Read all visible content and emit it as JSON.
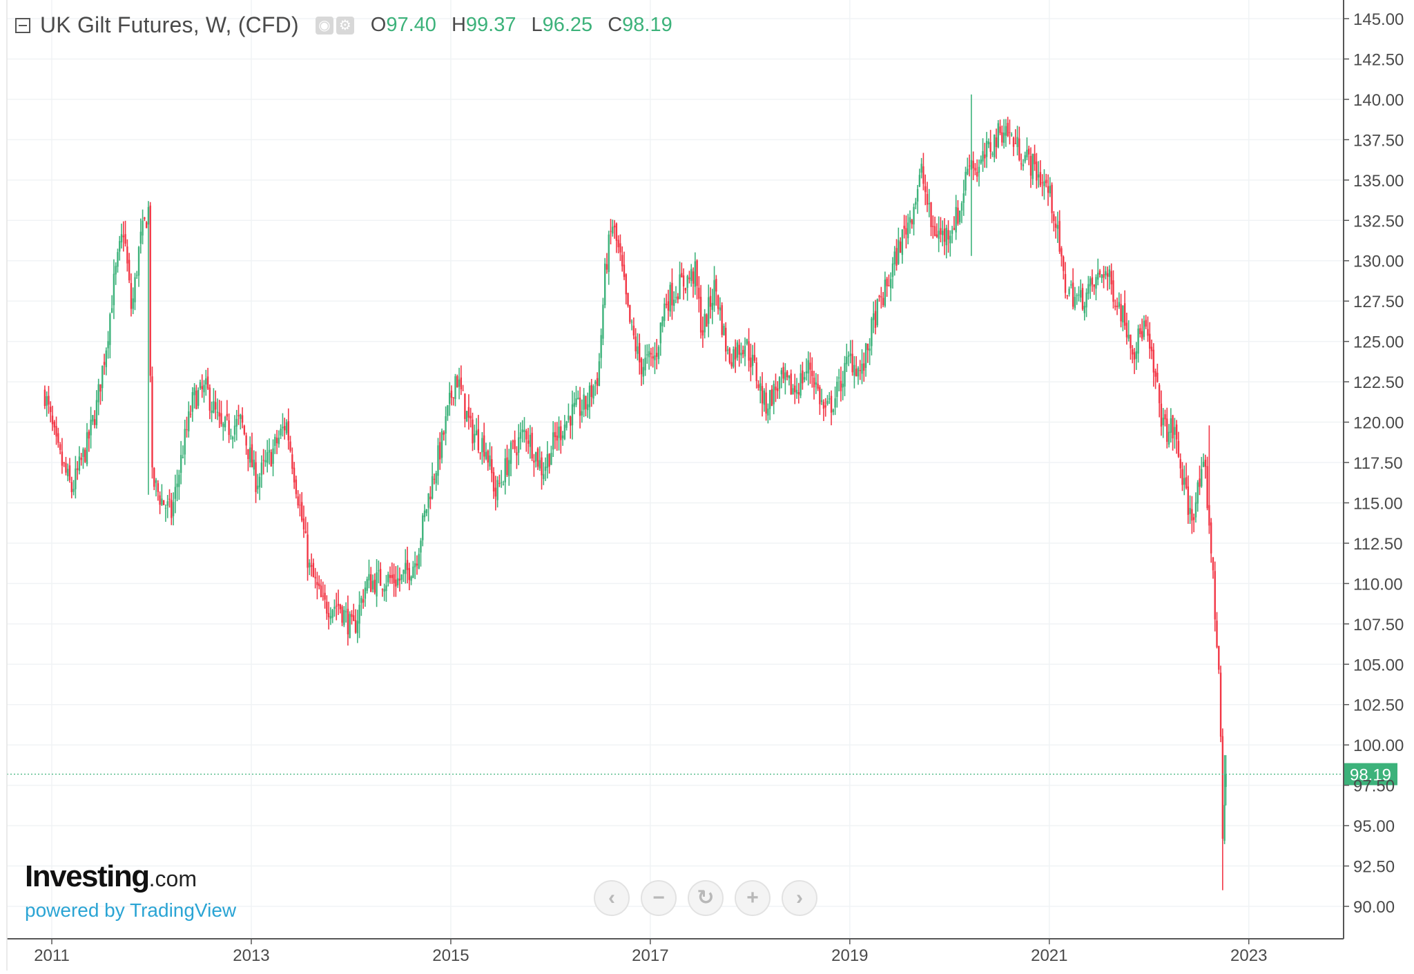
{
  "legend": {
    "title": "UK Gilt Futures, W, (CFD)",
    "icons": [
      "eye-icon",
      "gear-icon"
    ],
    "open_label": "O",
    "open_value": "97.40",
    "high_label": "H",
    "high_value": "99.37",
    "low_label": "L",
    "low_value": "96.25",
    "close_label": "C",
    "close_value": "98.19"
  },
  "brand": {
    "logo_main": "Investing",
    "logo_suffix": ".com",
    "powered_by": "powered by TradingView"
  },
  "navigation": [
    {
      "name": "scroll-left-button",
      "glyph": "‹"
    },
    {
      "name": "zoom-out-button",
      "glyph": "−"
    },
    {
      "name": "reset-button",
      "glyph": "↻"
    },
    {
      "name": "zoom-in-button",
      "glyph": "+"
    },
    {
      "name": "scroll-right-button",
      "glyph": "›"
    }
  ],
  "colors": {
    "up": "#3cb27a",
    "down": "#f23645",
    "price_label_bg": "#3cb27a",
    "price_line": "#3cb27a",
    "grid": "#f0f3f5",
    "axis_text": "#4a4a4a",
    "axis_line": "#555555"
  },
  "chart_data": {
    "type": "candlestick",
    "timeframe": "W",
    "instrument": "UK Gilt Futures (CFD)",
    "ylim": [
      88.0,
      147.0
    ],
    "y_ticks": [
      "90.00",
      "92.50",
      "95.00",
      "97.50",
      "100.00",
      "102.50",
      "105.00",
      "107.50",
      "110.00",
      "112.50",
      "115.00",
      "117.50",
      "120.00",
      "122.50",
      "125.00",
      "127.50",
      "130.00",
      "132.50",
      "135.00",
      "137.50",
      "140.00",
      "142.50",
      "145.00"
    ],
    "x_range": [
      2010.55,
      2023.95
    ],
    "x_ticks": [
      "2011",
      "2013",
      "2015",
      "2017",
      "2019",
      "2021",
      "2023"
    ],
    "x_tick_values": [
      2011,
      2013,
      2015,
      2017,
      2019,
      2021,
      2023
    ],
    "grid": true,
    "last_price_label": "98.19",
    "last_price": 98.19,
    "close_path": [
      [
        2010.93,
        121.8
      ],
      [
        2011.05,
        118.3
      ],
      [
        2011.2,
        115.8
      ],
      [
        2011.35,
        118.5
      ],
      [
        2011.45,
        121.0
      ],
      [
        2011.55,
        125.0
      ],
      [
        2011.62,
        128.5
      ],
      [
        2011.72,
        132.0
      ],
      [
        2011.8,
        126.8
      ],
      [
        2011.88,
        131.0
      ],
      [
        2011.97,
        133.2
      ],
      [
        2012.0,
        116.5
      ],
      [
        2012.1,
        115.2
      ],
      [
        2012.2,
        114.3
      ],
      [
        2012.32,
        118.5
      ],
      [
        2012.42,
        121.5
      ],
      [
        2012.55,
        122.0
      ],
      [
        2012.7,
        119.5
      ],
      [
        2012.9,
        120.0
      ],
      [
        2013.05,
        116.3
      ],
      [
        2013.2,
        118.0
      ],
      [
        2013.35,
        120.0
      ],
      [
        2013.48,
        115.0
      ],
      [
        2013.58,
        111.0
      ],
      [
        2013.72,
        108.6
      ],
      [
        2013.88,
        108.7
      ],
      [
        2014.02,
        107.0
      ],
      [
        2014.15,
        110.0
      ],
      [
        2014.35,
        110.3
      ],
      [
        2014.5,
        110.2
      ],
      [
        2014.65,
        111.5
      ],
      [
        2014.78,
        115.5
      ],
      [
        2014.92,
        119.0
      ],
      [
        2015.05,
        123.0
      ],
      [
        2015.2,
        119.5
      ],
      [
        2015.35,
        118.5
      ],
      [
        2015.45,
        115.5
      ],
      [
        2015.6,
        118.0
      ],
      [
        2015.75,
        119.5
      ],
      [
        2015.92,
        117.0
      ],
      [
        2016.05,
        119.0
      ],
      [
        2016.2,
        120.5
      ],
      [
        2016.35,
        121.0
      ],
      [
        2016.48,
        123.0
      ],
      [
        2016.55,
        129.5
      ],
      [
        2016.62,
        132.3
      ],
      [
        2016.7,
        130.0
      ],
      [
        2016.78,
        126.5
      ],
      [
        2016.9,
        123.5
      ],
      [
        2017.05,
        124.0
      ],
      [
        2017.15,
        127.5
      ],
      [
        2017.3,
        128.5
      ],
      [
        2017.45,
        129.2
      ],
      [
        2017.52,
        125.5
      ],
      [
        2017.65,
        128.5
      ],
      [
        2017.78,
        124.0
      ],
      [
        2017.95,
        125.0
      ],
      [
        2018.05,
        123.2
      ],
      [
        2018.15,
        121.0
      ],
      [
        2018.3,
        122.5
      ],
      [
        2018.45,
        122.0
      ],
      [
        2018.6,
        123.5
      ],
      [
        2018.75,
        120.5
      ],
      [
        2018.85,
        121.5
      ],
      [
        2019.0,
        124.0
      ],
      [
        2019.12,
        123.0
      ],
      [
        2019.25,
        126.5
      ],
      [
        2019.38,
        128.5
      ],
      [
        2019.5,
        131.0
      ],
      [
        2019.62,
        133.0
      ],
      [
        2019.72,
        135.5
      ],
      [
        2019.82,
        132.0
      ],
      [
        2019.95,
        131.5
      ],
      [
        2020.1,
        133.0
      ],
      [
        2020.2,
        136.5
      ],
      [
        2020.28,
        135.5
      ],
      [
        2020.4,
        137.0
      ],
      [
        2020.55,
        138.3
      ],
      [
        2020.68,
        137.0
      ],
      [
        2020.82,
        136.0
      ],
      [
        2020.98,
        134.5
      ],
      [
        2021.05,
        133.0
      ],
      [
        2021.15,
        128.5
      ],
      [
        2021.3,
        127.5
      ],
      [
        2021.45,
        128.5
      ],
      [
        2021.55,
        129.5
      ],
      [
        2021.65,
        128.0
      ],
      [
        2021.75,
        126.5
      ],
      [
        2021.85,
        124.5
      ],
      [
        2021.95,
        126.0
      ],
      [
        2022.05,
        123.0
      ],
      [
        2022.15,
        119.5
      ],
      [
        2022.25,
        119.5
      ],
      [
        2022.35,
        116.0
      ],
      [
        2022.42,
        114.0
      ],
      [
        2022.5,
        116.0
      ],
      [
        2022.56,
        117.0
      ],
      [
        2022.62,
        112.5
      ],
      [
        2022.67,
        107.0
      ],
      [
        2022.71,
        104.5
      ],
      [
        2022.735,
        93.0
      ],
      [
        2022.77,
        98.19
      ]
    ],
    "notable_wicks": [
      {
        "date": 2020.21,
        "high": 140.3,
        "low": 130.3
      },
      {
        "date": 2011.97,
        "high": 133.7,
        "low": 115.5
      },
      {
        "date": 2022.6,
        "high": 119.8,
        "low": 116.0
      },
      {
        "date": 2022.735,
        "high": 98.5,
        "low": 91.0
      },
      {
        "date": 2022.77,
        "high": 99.37,
        "low": 96.25
      }
    ],
    "last_bar": {
      "open": 97.4,
      "high": 99.37,
      "low": 96.25,
      "close": 98.19
    }
  }
}
